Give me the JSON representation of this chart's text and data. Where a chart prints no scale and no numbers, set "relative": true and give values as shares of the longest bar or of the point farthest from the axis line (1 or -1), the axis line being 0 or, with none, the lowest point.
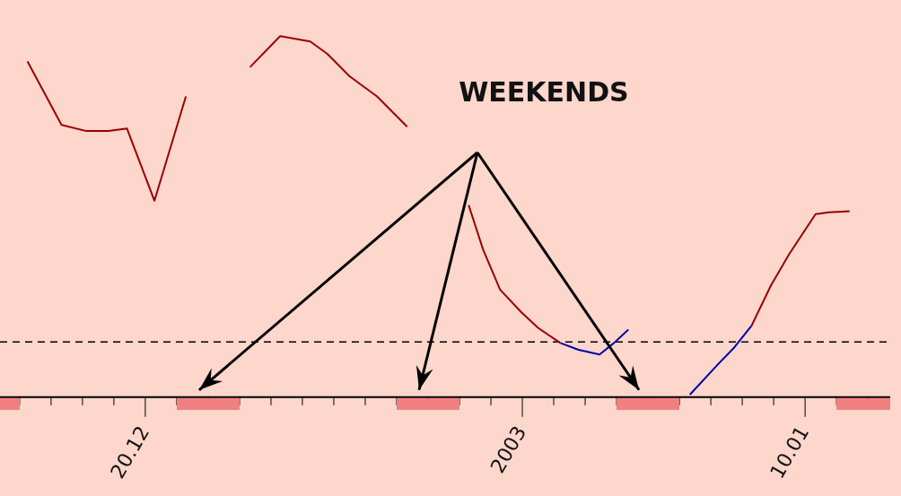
{
  "chart_data": {
    "type": "line",
    "relative": true,
    "legend": false,
    "grid": false,
    "marker": "none",
    "line_style": "solid",
    "annotations": [
      "WEEKENDS"
    ],
    "xlim": [
      "2002-12-15T09:00",
      "2003-01-12T17:00"
    ],
    "xticks": [
      {
        "value": "2002-12-16",
        "label": null
      },
      {
        "value": "2002-12-17",
        "label": null
      },
      {
        "value": "2002-12-18",
        "label": null
      },
      {
        "value": "2002-12-19",
        "label": null
      },
      {
        "value": "2002-12-20",
        "label": "20.12"
      },
      {
        "value": "2002-12-21",
        "label": null
      },
      {
        "value": "2002-12-22",
        "label": null
      },
      {
        "value": "2002-12-23",
        "label": null
      },
      {
        "value": "2002-12-24",
        "label": null
      },
      {
        "value": "2002-12-25",
        "label": null
      },
      {
        "value": "2002-12-26",
        "label": null
      },
      {
        "value": "2002-12-27",
        "label": null
      },
      {
        "value": "2002-12-28",
        "label": null
      },
      {
        "value": "2002-12-29",
        "label": null
      },
      {
        "value": "2002-12-30",
        "label": null
      },
      {
        "value": "2002-12-31",
        "label": null
      },
      {
        "value": "2003-01-01",
        "label": "2003"
      },
      {
        "value": "2003-01-02",
        "label": null
      },
      {
        "value": "2003-01-03",
        "label": null
      },
      {
        "value": "2003-01-04",
        "label": null
      },
      {
        "value": "2003-01-05",
        "label": null
      },
      {
        "value": "2003-01-06",
        "label": null
      },
      {
        "value": "2003-01-07",
        "label": null
      },
      {
        "value": "2003-01-08",
        "label": null
      },
      {
        "value": "2003-01-09",
        "label": null
      },
      {
        "value": "2003-01-10",
        "label": "10.01"
      },
      {
        "value": "2003-01-11",
        "label": null
      },
      {
        "value": "2003-01-12",
        "label": null
      }
    ],
    "ref_lines": [
      {
        "axis": "y",
        "value": 0.153,
        "color": "#000000",
        "line_style": "dashed"
      }
    ],
    "series": [
      {
        "color": "#990000",
        "x": [
          "2002-12-16T06:00",
          "2002-12-17T08:00",
          "2002-12-18T03:00",
          "2002-12-18T20:00",
          "2002-12-19T10:00",
          "2002-12-20T07:00",
          "2002-12-21T07:00",
          "2002-12-22T08:00",
          "2002-12-23T08:00",
          "2002-12-24T07:00",
          "2002-12-25T06:00",
          "2002-12-25T19:00",
          "2002-12-26T12:00",
          "2002-12-27T09:00",
          "2002-12-28T08:00",
          "2002-12-29T08:00",
          "2002-12-30T07:00",
          "2002-12-30T18:00",
          "2002-12-31T07:00",
          "2002-12-31T23:00",
          "2003-01-01T12:00",
          "2003-01-02T05:00",
          "2003-01-05T08:00",
          "2003-01-08T07:00",
          "2003-01-08T22:00",
          "2003-01-09T12:00",
          "2003-01-10T08:00",
          "2003-01-10T18:00",
          "2003-01-11T10:00"
        ],
        "values": [
          0.93,
          0.754,
          0.737,
          0.737,
          0.744,
          0.544,
          0.833,
          null,
          0.914,
          1,
          0.985,
          0.951,
          0.889,
          0.833,
          0.749,
          null,
          0.532,
          0.409,
          0.298,
          0.236,
          0.192,
          0.15,
          null,
          0.197,
          0.31,
          0.397,
          0.507,
          0.512,
          0.515
        ]
      },
      {
        "color": "#0000aa",
        "x": [
          "2003-01-02T05:00",
          "2003-01-02T19:00",
          "2003-01-03T11:00",
          "2003-01-03T22:00",
          "2003-01-04T09:00",
          "2003-01-05T08:00",
          "2003-01-06T08:00",
          "2003-01-07T05:00",
          "2003-01-07T18:00",
          "2003-01-08T07:00"
        ],
        "values": [
          0.15,
          0.131,
          0.118,
          0.15,
          0.187,
          null,
          0.007,
          0.089,
          0.138,
          0.197
        ]
      }
    ]
  }
}
